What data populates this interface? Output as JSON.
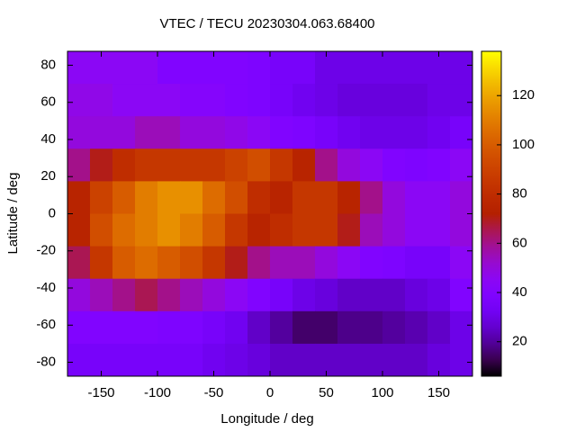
{
  "chart_data": {
    "type": "heatmap",
    "title": "VTEC / TECU 20230304.063.68400",
    "x_label": "Longitude / deg",
    "y_label": "Latitude / deg",
    "x": [
      -170,
      -150,
      -130,
      -110,
      -90,
      -70,
      -50,
      -30,
      -10,
      10,
      30,
      50,
      70,
      90,
      110,
      130,
      150,
      170
    ],
    "y": [
      78.75,
      61.25,
      43.75,
      26.25,
      8.75,
      -8.75,
      -26.25,
      -43.75,
      -61.25,
      -78.75
    ],
    "z": [
      [
        45,
        45,
        45,
        45,
        40,
        40,
        40,
        40,
        38,
        35,
        35,
        30,
        30,
        30,
        30,
        30,
        30,
        30
      ],
      [
        48,
        48,
        45,
        45,
        45,
        42,
        42,
        40,
        38,
        35,
        32,
        30,
        28,
        28,
        28,
        28,
        30,
        30
      ],
      [
        50,
        50,
        50,
        55,
        55,
        50,
        50,
        48,
        45,
        40,
        38,
        35,
        32,
        30,
        30,
        30,
        32,
        35
      ],
      [
        60,
        70,
        80,
        85,
        85,
        85,
        85,
        90,
        95,
        85,
        75,
        60,
        50,
        45,
        40,
        38,
        40,
        45
      ],
      [
        75,
        90,
        100,
        110,
        115,
        115,
        105,
        95,
        80,
        75,
        85,
        85,
        75,
        60,
        50,
        45,
        45,
        50
      ],
      [
        75,
        95,
        105,
        110,
        115,
        110,
        100,
        85,
        75,
        80,
        85,
        85,
        70,
        55,
        50,
        45,
        45,
        50
      ],
      [
        65,
        85,
        100,
        105,
        100,
        95,
        85,
        70,
        60,
        55,
        55,
        50,
        45,
        40,
        38,
        35,
        35,
        45
      ],
      [
        50,
        55,
        60,
        65,
        60,
        55,
        50,
        45,
        40,
        35,
        30,
        28,
        25,
        25,
        25,
        28,
        30,
        40
      ],
      [
        40,
        40,
        40,
        40,
        38,
        38,
        35,
        32,
        25,
        20,
        15,
        15,
        18,
        18,
        20,
        22,
        25,
        30
      ],
      [
        35,
        35,
        35,
        35,
        35,
        35,
        32,
        30,
        28,
        25,
        25,
        25,
        25,
        25,
        25,
        25,
        28,
        30
      ]
    ],
    "xlim": [
      -180,
      180
    ],
    "ylim": [
      -87.5,
      87.5
    ],
    "xticks": [
      -150,
      -100,
      -50,
      0,
      50,
      100,
      150
    ],
    "yticks": [
      -80,
      -60,
      -40,
      -20,
      0,
      20,
      40,
      60,
      80
    ],
    "zlim": [
      6,
      138
    ],
    "zticks": [
      20,
      40,
      60,
      80,
      100,
      120
    ],
    "palette": "rgbformulae-7-5-15"
  }
}
